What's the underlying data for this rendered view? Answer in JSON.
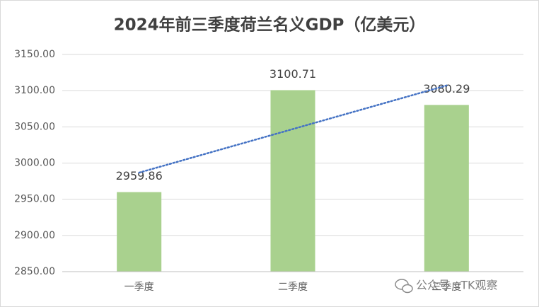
{
  "chart_data": {
    "type": "bar",
    "title": "2024年前三季度荷兰名义GDP（亿美元）",
    "categories": [
      "一季度",
      "二季度",
      "三季度"
    ],
    "values": [
      2959.86,
      3100.71,
      3080.29
    ],
    "color": "#a9d18e",
    "ylim": [
      2850,
      3150
    ],
    "yticks": [
      {
        "value": 2850,
        "label": "2850.00"
      },
      {
        "value": 2900,
        "label": "2900.00"
      },
      {
        "value": 2950,
        "label": "2950.00"
      },
      {
        "value": 3000,
        "label": "3000.00"
      },
      {
        "value": 3050,
        "label": "3050.00"
      },
      {
        "value": 3100,
        "label": "3100.00"
      },
      {
        "value": 3150,
        "label": "3150.00"
      }
    ],
    "grid": true,
    "trendline": {
      "kind": "linear",
      "color": "#4472c4",
      "style": "dotted"
    },
    "watermark": "公众号 · TK观察"
  }
}
